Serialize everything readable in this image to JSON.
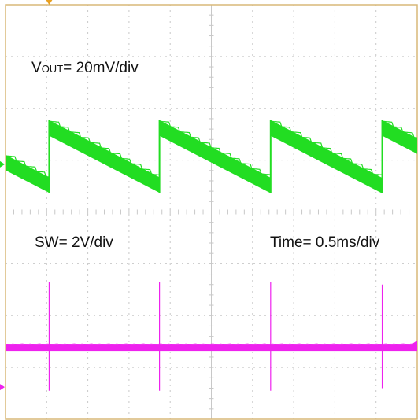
{
  "colors": {
    "background": "#ffffff",
    "frame": "#d8b878",
    "grid": "#c8c8c8",
    "vout_trace": "#22dd22",
    "sw_trace": "#ee22ee",
    "trigger_marker": "#e8a020"
  },
  "labels": {
    "vout_prefix": "V",
    "vout_sub": "OUT",
    "vout_rest": "= 20mV/div",
    "sw": "SW= 2V/div",
    "time": "Time= 0.5ms/div"
  },
  "chart_data": {
    "type": "line",
    "title": "",
    "time_per_div": "0.5ms/div",
    "grid": true,
    "x_divisions": 10,
    "y_divisions": 8,
    "xlim_div": [
      0,
      10
    ],
    "series": [
      {
        "name": "VOUT",
        "scale": "20mV/div",
        "shape": "sawtooth",
        "jump_times_div": [
          1.06,
          3.74,
          6.44,
          9.15
        ],
        "ramp_top_div": 5.62,
        "ramp_bottom_div": 4.52,
        "trace_thickness_div": 0.3
      },
      {
        "name": "SW",
        "scale": "2V/div",
        "shape": "flat-with-spikes",
        "baseline_div": 1.38,
        "spike_times_div": [
          1.06,
          3.74,
          6.44,
          9.15
        ],
        "spike_top_div": [
          2.65,
          2.65,
          2.65,
          2.6
        ],
        "spike_bottom_div": [
          0.55,
          0.55,
          0.55,
          0.6
        ]
      }
    ]
  }
}
